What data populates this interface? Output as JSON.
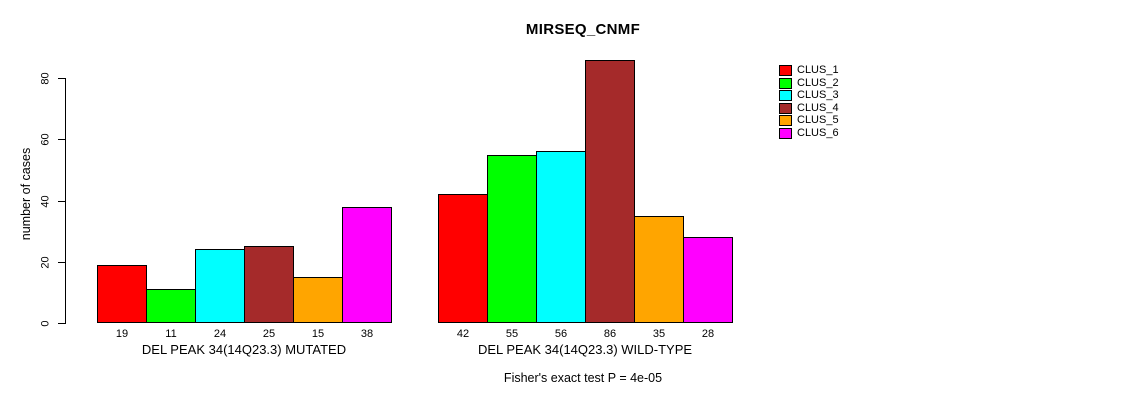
{
  "window": {
    "background": "#ffffff"
  },
  "chart_data": {
    "type": "bar",
    "title": "MIRSEQ_CNMF",
    "ylabel": "number of cases",
    "xlabel": "",
    "ylim": [
      0,
      88
    ],
    "yticks": [
      0,
      20,
      40,
      60,
      80
    ],
    "grid": false,
    "legend_position": "right",
    "series_labels": [
      "CLUS_1",
      "CLUS_2",
      "CLUS_3",
      "CLUS_4",
      "CLUS_5",
      "CLUS_6"
    ],
    "series_colors": [
      "#ff0000",
      "#00ff00",
      "#00ffff",
      "#a52a2a",
      "#ffa500",
      "#ff00ff"
    ],
    "groups": [
      {
        "label": "DEL PEAK 34(14Q23.3) MUTATED",
        "values": [
          19,
          11,
          24,
          25,
          15,
          38
        ]
      },
      {
        "label": "DEL PEAK 34(14Q23.3) WILD-TYPE",
        "values": [
          42,
          55,
          56,
          86,
          35,
          28
        ]
      }
    ],
    "bar_value_labels_shown": true,
    "annotation": "Fisher's exact test P = 4e-05"
  }
}
